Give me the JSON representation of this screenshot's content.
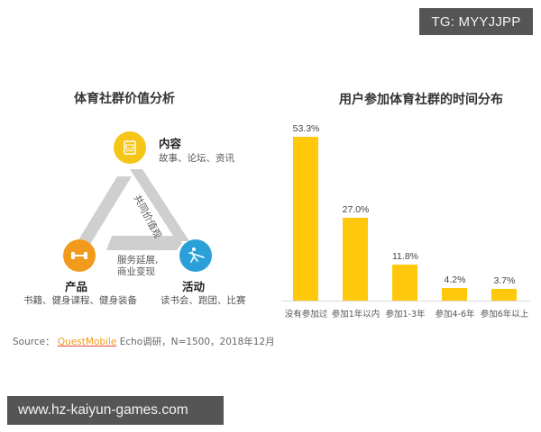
{
  "watermarks": {
    "tg": "TG: MYYJJPP",
    "url": "www.hz-kaiyun-games.com"
  },
  "left_panel": {
    "title": "体育社群价值分析",
    "nodes": {
      "content": {
        "title": "内容",
        "desc": "故事、论坛、资讯",
        "icon": "document-icon",
        "color": "#f5c518"
      },
      "product": {
        "title": "产品",
        "desc": "书籍、健身课程、健身装备",
        "icon": "dumbbell-icon",
        "color": "#f29a1b"
      },
      "activity": {
        "title": "活动",
        "desc": "读书会、跑团、比赛",
        "icon": "runner-icon",
        "color": "#2a9fd8"
      }
    },
    "edge_label_right": "共同价值观",
    "center_label_line1": "服务延展,",
    "center_label_line2": "商业变现"
  },
  "source": {
    "prefix": "Source：",
    "brand": "QuestMobile",
    "suffix": " Echo调研，N=1500，2018年12月"
  },
  "chart_data": {
    "type": "bar",
    "title": "用户参加体育社群的时间分布",
    "categories": [
      "没有参加过",
      "参加1年以内",
      "参加1-3年",
      "参加4-6年",
      "参加6年以上"
    ],
    "values": [
      53.3,
      27.0,
      11.8,
      4.2,
      3.7
    ],
    "value_labels": [
      "53.3%",
      "27.0%",
      "11.8%",
      "4.2%",
      "3.7%"
    ],
    "xlabel": "",
    "ylabel": "",
    "ylim": [
      0,
      55
    ],
    "grid": false,
    "legend": "none",
    "bar_color": "#ffc80a"
  }
}
